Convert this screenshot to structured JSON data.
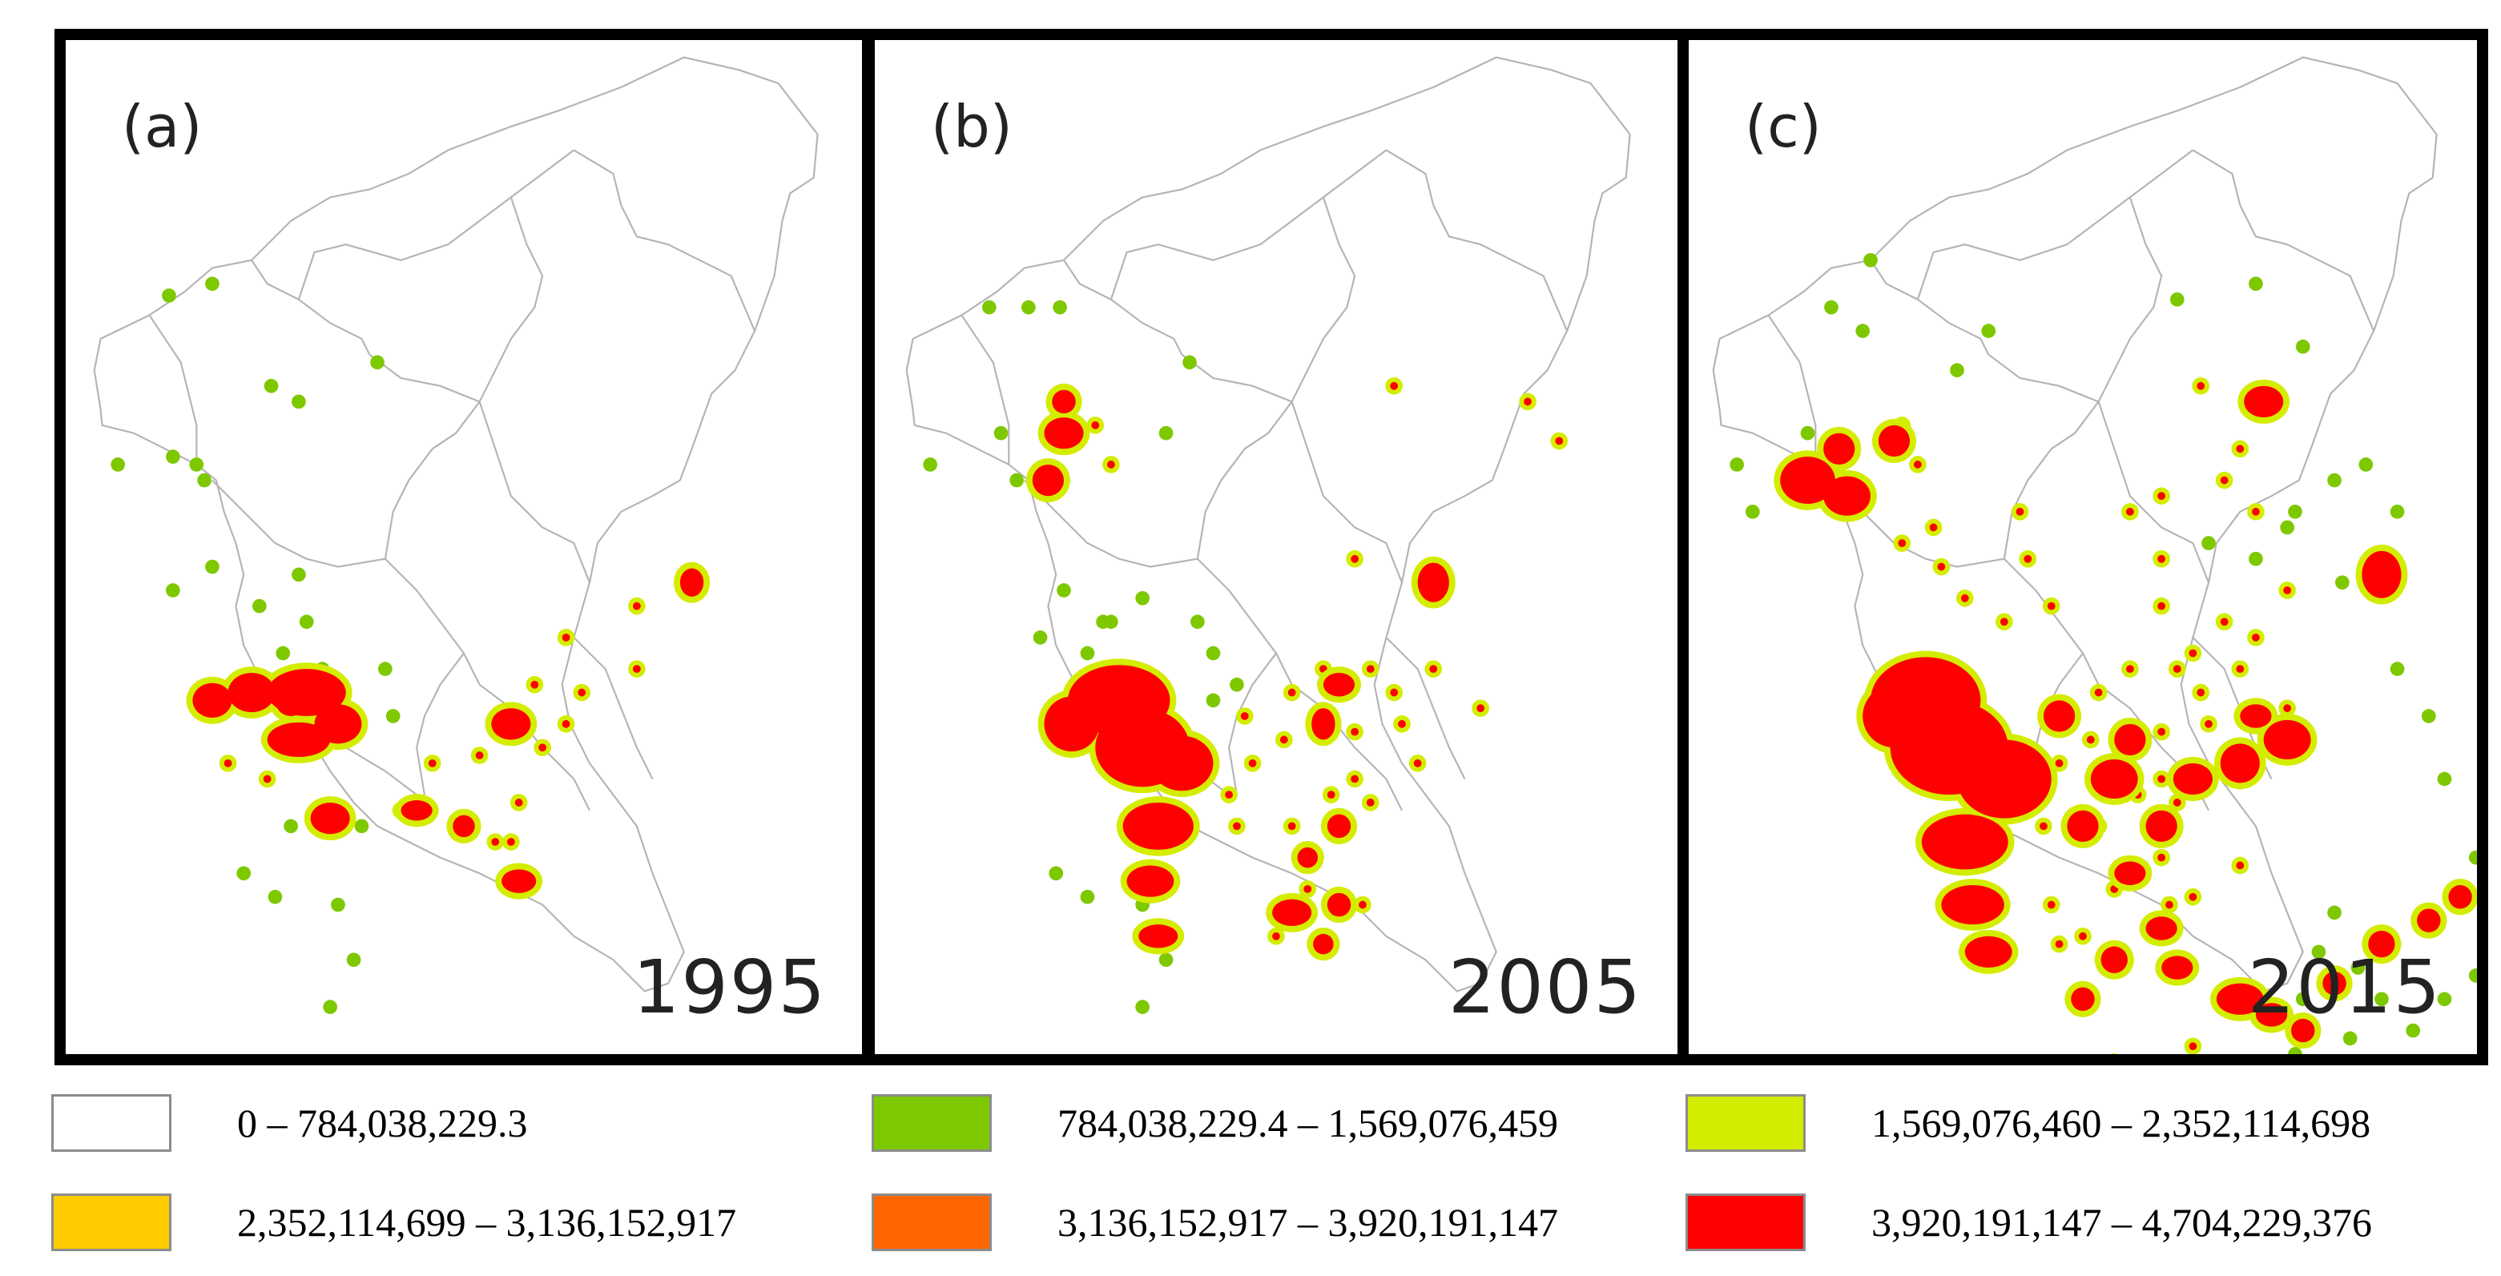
{
  "panels": [
    {
      "label": "(a)",
      "year": "1995"
    },
    {
      "label": "(b)",
      "year": "2005"
    },
    {
      "label": "(c)",
      "year": "2015"
    }
  ],
  "legend": [
    {
      "range": "0 – 784,038,229.3",
      "color": "#ffffff"
    },
    {
      "range": "784,038,229.4 – 1,569,076,459",
      "color": "#7ec800"
    },
    {
      "range": "1,569,076,460 – 2,352,114,698",
      "color": "#d4ec00"
    },
    {
      "range": "2,352,114,699 – 3,136,152,917",
      "color": "#ffcc00"
    },
    {
      "range": "3,136,152,917 – 3,920,191,147",
      "color": "#ff6600"
    },
    {
      "range": "3,920,191,147 – 4,704,229,376",
      "color": "#ff0000"
    }
  ]
}
